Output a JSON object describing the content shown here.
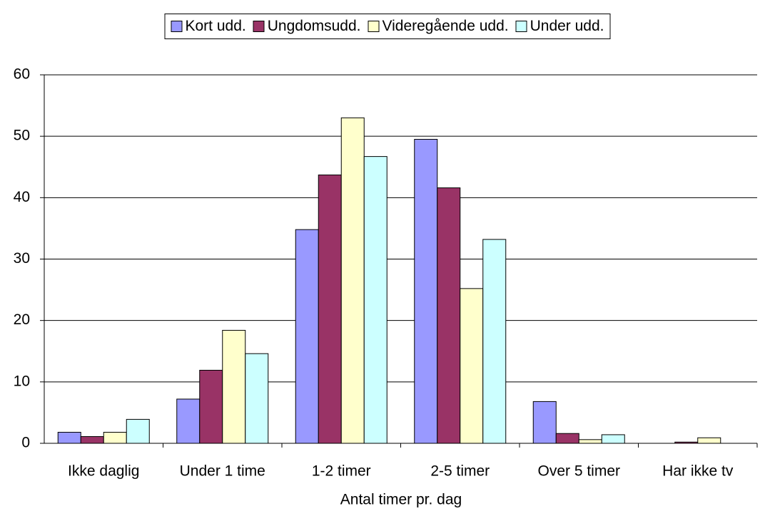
{
  "chart_data": {
    "type": "bar",
    "x_label": "Antal timer pr. dag",
    "categories": [
      "Ikke daglig",
      "Under 1 time",
      "1-2 timer",
      "2-5 timer",
      "Over 5 timer",
      "Har ikke tv"
    ],
    "series": [
      {
        "name": "Kort udd.",
        "color": "#9999ff",
        "values": [
          1.8,
          7.2,
          34.8,
          49.5,
          6.8,
          0
        ]
      },
      {
        "name": "Ungdomsudd.",
        "color": "#993366",
        "values": [
          1.1,
          11.9,
          43.7,
          41.6,
          1.6,
          0.2
        ]
      },
      {
        "name": "Videregående udd.",
        "color": "#ffffcc",
        "values": [
          1.8,
          18.4,
          53.0,
          25.2,
          0.6,
          0.9
        ]
      },
      {
        "name": "Under udd.",
        "color": "#ccffff",
        "values": [
          3.9,
          14.6,
          46.7,
          33.2,
          1.4,
          0
        ]
      }
    ],
    "ylim": [
      0,
      60
    ],
    "yticks": [
      0,
      10,
      20,
      30,
      40,
      50,
      60
    ],
    "grid": true,
    "legend": "top"
  }
}
